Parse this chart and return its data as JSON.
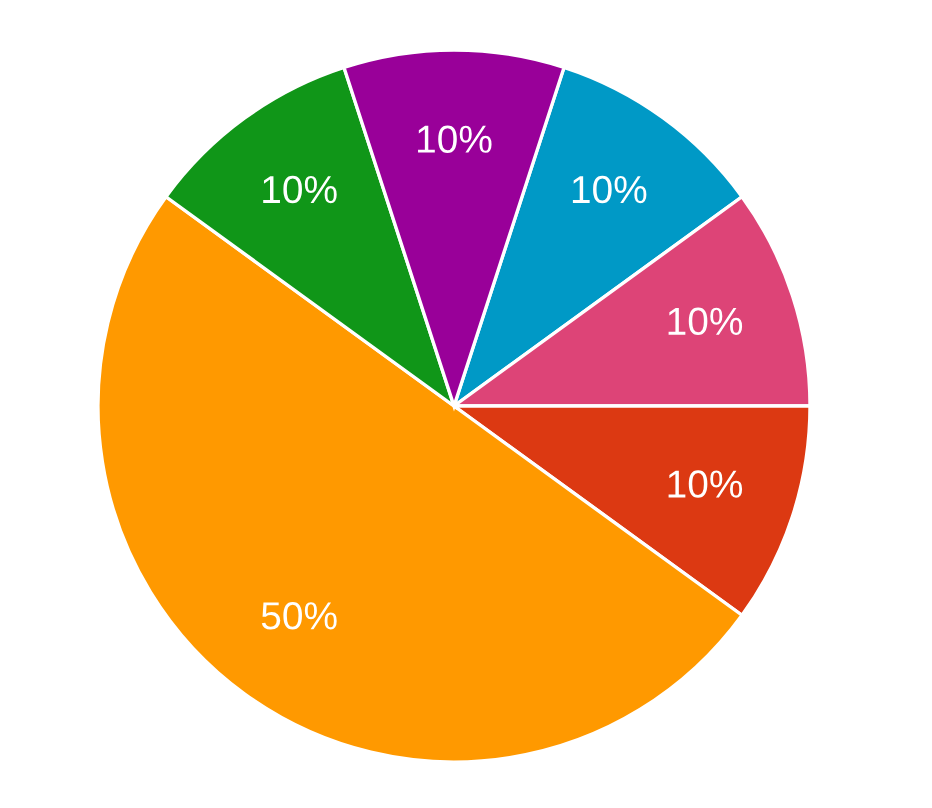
{
  "chart_data": {
    "type": "pie",
    "categories": [
      null,
      null,
      null,
      null,
      null,
      null
    ],
    "values": [
      10,
      10,
      10,
      50,
      10,
      10
    ],
    "colors": [
      "#0099c6",
      "#dd4477",
      "#dc3912",
      "#ff9900",
      "#109618",
      "#990099"
    ],
    "value_labels": [
      "10%",
      "10%",
      "10%",
      "50%",
      "10%",
      "10%"
    ]
  }
}
